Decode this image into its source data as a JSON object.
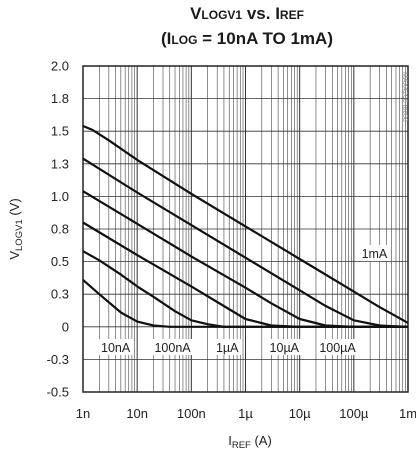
{
  "chart_data": {
    "type": "line",
    "title_parts": {
      "v": "V",
      "v_sub": "LOGV1",
      "vs": " vs. ",
      "i": "I",
      "i_sub": "REF",
      "line2_open": "(I",
      "line2_sub": "LOG",
      "line2_rest": " = 10nA TO 1mA)"
    },
    "xlabel_parts": {
      "main": "I",
      "sub": "REF",
      "unit": " (A)"
    },
    "ylabel_parts": {
      "main": "V",
      "sub": "LOGV1",
      "unit": " (V)"
    },
    "watermark": "MAX4206 toc08",
    "x_scale": "log",
    "xlim": [
      1e-09,
      0.001
    ],
    "ylim": [
      -0.5,
      2.0
    ],
    "x_ticks": [
      1e-09,
      1e-08,
      1e-07,
      1e-06,
      1e-05,
      0.0001,
      0.001
    ],
    "x_tick_labels": [
      "1n",
      "10n",
      "100n",
      "1µ",
      "10µ",
      "100µ",
      "1m"
    ],
    "y_ticks": [
      -0.5,
      -0.25,
      0,
      0.25,
      0.5,
      0.75,
      1.0,
      1.25,
      1.5,
      1.75,
      2.0
    ],
    "y_tick_labels": [
      "-0.5",
      "-0.3",
      "0",
      "0.3",
      "0.5",
      "0.8",
      "1.0",
      "1.3",
      "1.5",
      "1.8",
      "2.0"
    ],
    "grid": true,
    "series": [
      {
        "name": "10nA",
        "x": [
          1e-09,
          2e-09,
          5e-09,
          1e-08,
          2e-08,
          4e-08,
          1e-07,
          1e-06,
          0.001
        ],
        "y": [
          0.36,
          0.25,
          0.11,
          0.04,
          0.01,
          0.0,
          0.0,
          0.0,
          0.0
        ]
      },
      {
        "name": "100nA",
        "x": [
          1e-09,
          2e-09,
          5e-09,
          1e-08,
          2e-08,
          5e-08,
          1e-07,
          2e-07,
          4e-07,
          1e-06,
          0.001
        ],
        "y": [
          0.58,
          0.51,
          0.4,
          0.31,
          0.23,
          0.12,
          0.05,
          0.02,
          0.0,
          0.0,
          0.0
        ]
      },
      {
        "name": "1µA",
        "x": [
          1e-09,
          1e-08,
          1e-07,
          3e-07,
          1e-06,
          3e-06,
          1e-05,
          0.001
        ],
        "y": [
          0.8,
          0.55,
          0.31,
          0.19,
          0.06,
          0.01,
          0.0,
          0.0
        ]
      },
      {
        "name": "10µA",
        "x": [
          1e-09,
          1e-08,
          1e-07,
          1e-06,
          3e-06,
          1e-05,
          3e-05,
          0.0001,
          0.001
        ],
        "y": [
          1.04,
          0.79,
          0.54,
          0.3,
          0.18,
          0.06,
          0.01,
          0.0,
          0.0
        ]
      },
      {
        "name": "100µA",
        "x": [
          1e-09,
          1e-08,
          1e-07,
          1e-06,
          1e-05,
          3e-05,
          0.0001,
          0.0003,
          0.001
        ],
        "y": [
          1.29,
          1.03,
          0.78,
          0.53,
          0.28,
          0.16,
          0.05,
          0.01,
          0.0
        ]
      },
      {
        "name": "1mA",
        "x": [
          1e-09,
          1.5e-09,
          3e-09,
          1e-08,
          1e-07,
          1e-06,
          1e-05,
          0.0001,
          0.0003,
          0.001
        ],
        "y": [
          1.54,
          1.51,
          1.43,
          1.28,
          1.02,
          0.77,
          0.52,
          0.27,
          0.15,
          0.03
        ]
      }
    ],
    "curve_labels": [
      {
        "text": "10nA",
        "x": 4e-09,
        "y": -0.17
      },
      {
        "text": "100nA",
        "x": 4.5e-08,
        "y": -0.17
      },
      {
        "text": "1µA",
        "x": 4.6e-07,
        "y": -0.17
      },
      {
        "text": "10µA",
        "x": 5.2e-06,
        "y": -0.17
      },
      {
        "text": "100µA",
        "x": 5e-05,
        "y": -0.17
      },
      {
        "text": "1mA",
        "x": 0.00024,
        "y": 0.55
      }
    ]
  }
}
